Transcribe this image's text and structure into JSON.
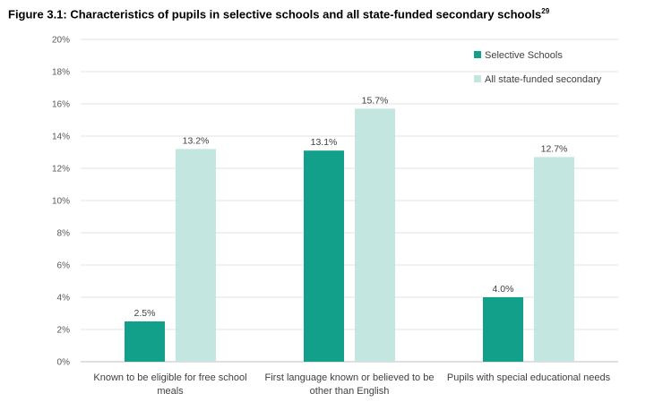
{
  "title": "Figure 3.1: Characteristics of pupils in selective schools and all state-funded secondary schools",
  "title_footnote": "29",
  "chart_data": {
    "type": "bar",
    "categories": [
      [
        "Known to be eligible for free school",
        "meals"
      ],
      [
        "First language known or believed to be",
        "other than English"
      ],
      [
        "Pupils with special educational needs"
      ]
    ],
    "series": [
      {
        "name": "Selective Schools",
        "values": [
          2.5,
          13.1,
          4.0
        ],
        "labels": [
          "2.5%",
          "13.1%",
          "4.0%"
        ],
        "color": "#13A08A"
      },
      {
        "name": "All state-funded secondary",
        "values": [
          13.2,
          15.7,
          12.7
        ],
        "labels": [
          "13.2%",
          "15.7%",
          "12.7%"
        ],
        "color": "#C3E7E0"
      }
    ],
    "ylim": [
      0,
      20
    ],
    "yticks": [
      "0%",
      "2%",
      "4%",
      "6%",
      "8%",
      "10%",
      "12%",
      "14%",
      "16%",
      "18%",
      "20%"
    ],
    "grid": true,
    "legend_position": "top-right"
  }
}
